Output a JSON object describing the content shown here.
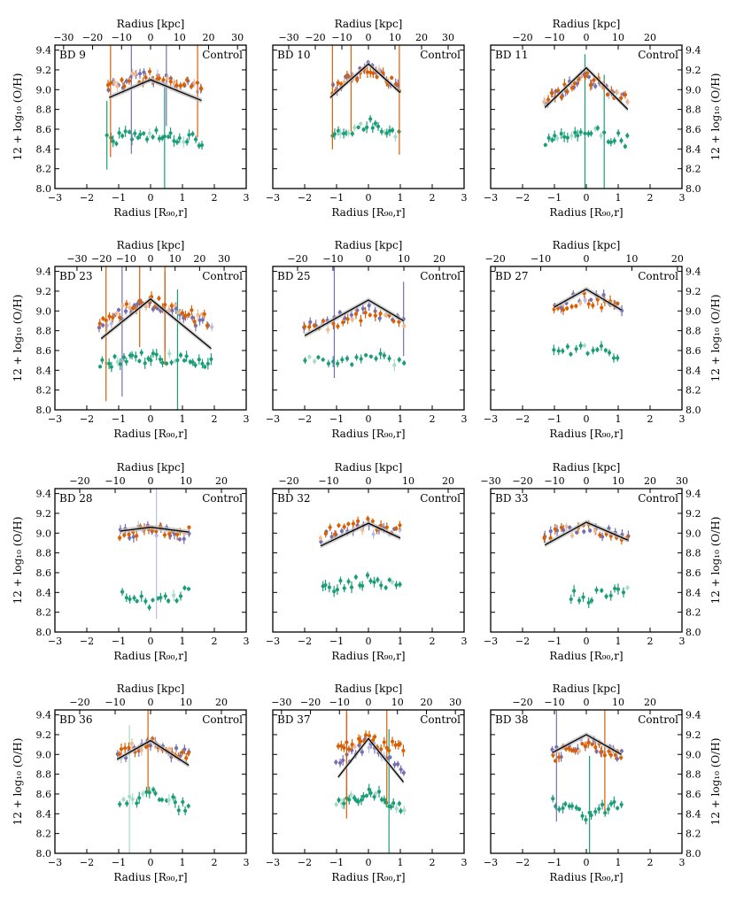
{
  "figure": {
    "bottom_xlabel": "Radius [R₉₀,r]",
    "top_xlabel": "Radius [kpc]",
    "ylabel": "12 + log₁₀ (O/H)",
    "control_label": "Control"
  },
  "colors": {
    "orange": "#d95f02",
    "purple": "#7570b3",
    "green": "#1b9e77",
    "light_orange": "#f0b98e",
    "light_purple": "#bdbbe0",
    "light_green": "#a6dcc8",
    "fit_line": "#000000",
    "fit_band": "#bbbbbb"
  },
  "chart_data": [
    {
      "type": "scatter",
      "title": "BD 9",
      "ylim": [
        8.0,
        9.45
      ],
      "xlim": [
        -3,
        3
      ],
      "x_ticks": [
        -3,
        -2,
        -1,
        0,
        1,
        2,
        3
      ],
      "y_ticks": [
        8.0,
        8.2,
        8.4,
        8.6,
        8.8,
        9.0,
        9.2,
        9.4
      ],
      "top_ticks": [
        -30,
        -20,
        -10,
        0,
        10,
        20,
        30
      ],
      "kpc_per_r90": 11,
      "fit": {
        "x": [
          -1.3,
          0,
          1.6
        ],
        "y": [
          8.92,
          9.1,
          8.89
        ]
      },
      "profiles": {
        "orange": {
          "xr": [
            -1.35,
            1.6
          ],
          "base": 9.04,
          "amp": 0.1,
          "n": 28
        },
        "purple": {
          "xr": [
            -1.3,
            1.6
          ],
          "base": 9.02,
          "amp": 0.12,
          "n": 22
        },
        "green": {
          "xr": [
            -1.35,
            1.6
          ],
          "base": 8.49,
          "amp": 0.06,
          "n": 32
        }
      }
    },
    {
      "type": "scatter",
      "title": "BD 10",
      "ylim": [
        8.0,
        9.45
      ],
      "xlim": [
        -3,
        3
      ],
      "x_ticks": [
        -3,
        -2,
        -1,
        0,
        1,
        2,
        3
      ],
      "y_ticks": [
        8.0,
        8.2,
        8.4,
        8.6,
        8.8,
        9.0,
        9.2,
        9.4
      ],
      "top_ticks": [
        -30,
        -20,
        -10,
        0,
        10,
        20,
        30
      ],
      "kpc_per_r90": 12,
      "fit": {
        "x": [
          -1.2,
          0,
          1.0
        ],
        "y": [
          8.92,
          9.26,
          8.97
        ]
      },
      "profiles": {
        "orange": {
          "xr": [
            -1.15,
            0.95
          ],
          "base": 9.0,
          "amp": 0.22,
          "n": 22
        },
        "purple": {
          "xr": [
            -1.1,
            0.95
          ],
          "base": 9.0,
          "amp": 0.22,
          "n": 18
        },
        "green": {
          "xr": [
            -1.15,
            0.95
          ],
          "base": 8.52,
          "amp": 0.15,
          "n": 24
        }
      }
    },
    {
      "type": "scatter",
      "title": "BD 11",
      "ylim": [
        8.0,
        9.45
      ],
      "xlim": [
        -3,
        3
      ],
      "x_ticks": [
        -3,
        -2,
        -1,
        0,
        1,
        2,
        3
      ],
      "y_ticks": [
        8.0,
        8.2,
        8.4,
        8.6,
        8.8,
        9.0,
        9.2,
        9.4
      ],
      "top_ticks": [
        -20,
        -10,
        0,
        10,
        20
      ],
      "kpc_per_r90": 10,
      "fit": {
        "x": [
          -1.3,
          0,
          1.3
        ],
        "y": [
          8.82,
          9.22,
          8.8
        ]
      },
      "profiles": {
        "orange": {
          "xr": [
            -1.3,
            1.3
          ],
          "base": 8.88,
          "amp": 0.25,
          "n": 26
        },
        "purple": {
          "xr": [
            -1.3,
            1.3
          ],
          "base": 8.88,
          "amp": 0.25,
          "n": 24
        },
        "green": {
          "xr": [
            -1.3,
            1.3
          ],
          "base": 8.48,
          "amp": 0.1,
          "n": 26
        }
      }
    },
    {
      "type": "scatter",
      "title": "BD 23",
      "ylim": [
        8.0,
        9.45
      ],
      "xlim": [
        -3,
        3
      ],
      "x_ticks": [
        -3,
        -2,
        -1,
        0,
        1,
        2,
        3
      ],
      "y_ticks": [
        8.0,
        8.2,
        8.4,
        8.6,
        8.8,
        9.0,
        9.2,
        9.4
      ],
      "top_ticks": [
        -30,
        -20,
        -10,
        0,
        10,
        20,
        30
      ],
      "kpc_per_r90": 13,
      "fit": {
        "x": [
          -1.55,
          0,
          1.9
        ],
        "y": [
          8.72,
          9.12,
          8.62
        ]
      },
      "profiles": {
        "orange": {
          "xr": [
            -1.6,
            1.8
          ],
          "base": 8.9,
          "amp": 0.2,
          "n": 34
        },
        "purple": {
          "xr": [
            -1.6,
            1.9
          ],
          "base": 8.85,
          "amp": 0.22,
          "n": 30
        },
        "green": {
          "xr": [
            -1.6,
            1.9
          ],
          "base": 8.47,
          "amp": 0.06,
          "n": 38
        }
      }
    },
    {
      "type": "scatter",
      "title": "BD 25",
      "ylim": [
        8.0,
        9.45
      ],
      "xlim": [
        -3,
        3
      ],
      "x_ticks": [
        -3,
        -2,
        -1,
        0,
        1,
        2,
        3
      ],
      "y_ticks": [
        8.0,
        8.2,
        8.4,
        8.6,
        8.8,
        9.0,
        9.2,
        9.4
      ],
      "top_ticks": [
        -20,
        -10,
        0,
        10,
        20
      ],
      "kpc_per_r90": 9,
      "fit": {
        "x": [
          -2.0,
          0,
          1.1
        ],
        "y": [
          8.75,
          9.11,
          8.9
        ]
      },
      "profiles": {
        "orange": {
          "xr": [
            -2.0,
            1.1
          ],
          "base": 8.8,
          "amp": 0.18,
          "n": 22
        },
        "purple": {
          "xr": [
            -2.0,
            1.1
          ],
          "base": 8.85,
          "amp": 0.15,
          "n": 18
        },
        "green": {
          "xr": [
            -2.0,
            1.1
          ],
          "base": 8.48,
          "amp": 0.05,
          "n": 22
        }
      }
    },
    {
      "type": "scatter",
      "title": "BD 27",
      "ylim": [
        8.0,
        9.45
      ],
      "xlim": [
        -3,
        3
      ],
      "x_ticks": [
        -3,
        -2,
        -1,
        0,
        1,
        2,
        3
      ],
      "y_ticks": [
        8.0,
        8.2,
        8.4,
        8.6,
        8.8,
        9.0,
        9.2,
        9.4
      ],
      "top_ticks": [
        -20,
        -10,
        0,
        10,
        20
      ],
      "kpc_per_r90": 7,
      "fit": {
        "x": [
          -1.0,
          0,
          1.1
        ],
        "y": [
          9.04,
          9.22,
          9.01
        ]
      },
      "profiles": {
        "orange": {
          "xr": [
            -1.0,
            1.0
          ],
          "base": 9.03,
          "amp": 0.1,
          "n": 16
        },
        "purple": {
          "xr": [
            -1.0,
            1.1
          ],
          "base": 9.05,
          "amp": 0.12,
          "n": 12
        },
        "green": {
          "xr": [
            -1.0,
            1.0
          ],
          "base": 8.55,
          "amp": 0.08,
          "n": 16
        }
      }
    },
    {
      "type": "scatter",
      "title": "BD 28",
      "ylim": [
        8.0,
        9.45
      ],
      "xlim": [
        -3,
        3
      ],
      "x_ticks": [
        -3,
        -2,
        -1,
        0,
        1,
        2,
        3
      ],
      "y_ticks": [
        8.0,
        8.2,
        8.4,
        8.6,
        8.8,
        9.0,
        9.2,
        9.4
      ],
      "top_ticks": [
        -20,
        -10,
        0,
        10,
        20
      ],
      "kpc_per_r90": 9,
      "fit": {
        "x": [
          -0.95,
          0,
          1.2
        ],
        "y": [
          9.02,
          9.06,
          9.01
        ]
      },
      "profiles": {
        "orange": {
          "xr": [
            -0.95,
            1.2
          ],
          "base": 9.0,
          "amp": 0.05,
          "n": 18
        },
        "purple": {
          "xr": [
            -0.95,
            1.2
          ],
          "base": 8.98,
          "amp": 0.05,
          "n": 16
        },
        "green": {
          "xr": [
            -0.9,
            1.2
          ],
          "base": 8.42,
          "amp": -0.15,
          "n": 18
        }
      }
    },
    {
      "type": "scatter",
      "title": "BD 32",
      "ylim": [
        8.0,
        9.45
      ],
      "xlim": [
        -3,
        3
      ],
      "x_ticks": [
        -3,
        -2,
        -1,
        0,
        1,
        2,
        3
      ],
      "y_ticks": [
        8.0,
        8.2,
        8.4,
        8.6,
        8.8,
        9.0,
        9.2,
        9.4
      ],
      "top_ticks": [
        -20,
        -10,
        0,
        10,
        20
      ],
      "kpc_per_r90": 8,
      "fit": {
        "x": [
          -1.5,
          0,
          1.0
        ],
        "y": [
          8.87,
          9.1,
          8.95
        ]
      },
      "profiles": {
        "orange": {
          "xr": [
            -1.5,
            1.0
          ],
          "base": 9.0,
          "amp": 0.1,
          "n": 18
        },
        "purple": {
          "xr": [
            -1.5,
            1.0
          ],
          "base": 8.95,
          "amp": 0.1,
          "n": 16
        },
        "green": {
          "xr": [
            -1.45,
            1.0
          ],
          "base": 8.45,
          "amp": 0.08,
          "n": 22
        }
      }
    },
    {
      "type": "scatter",
      "title": "BD 33",
      "ylim": [
        8.0,
        9.45
      ],
      "xlim": [
        -3,
        3
      ],
      "x_ticks": [
        -3,
        -2,
        -1,
        0,
        1,
        2,
        3
      ],
      "y_ticks": [
        8.0,
        8.2,
        8.4,
        8.6,
        8.8,
        9.0,
        9.2,
        9.4
      ],
      "top_ticks": [
        -30,
        -20,
        -10,
        0,
        10,
        20,
        30
      ],
      "kpc_per_r90": 10,
      "fit": {
        "x": [
          -1.3,
          0,
          1.3
        ],
        "y": [
          8.88,
          9.11,
          8.93
        ]
      },
      "profiles": {
        "orange": {
          "xr": [
            -1.3,
            1.3
          ],
          "base": 8.98,
          "amp": 0.08,
          "n": 16
        },
        "purple": {
          "xr": [
            -1.3,
            1.3
          ],
          "base": 8.95,
          "amp": 0.1,
          "n": 14
        },
        "green": {
          "xr": [
            -0.5,
            1.3
          ],
          "base": 8.45,
          "amp": -0.1,
          "n": 14
        }
      }
    },
    {
      "type": "scatter",
      "title": "BD 36",
      "ylim": [
        8.0,
        9.45
      ],
      "xlim": [
        -3,
        3
      ],
      "x_ticks": [
        -3,
        -2,
        -1,
        0,
        1,
        2,
        3
      ],
      "y_ticks": [
        8.0,
        8.2,
        8.4,
        8.6,
        8.8,
        9.0,
        9.2,
        9.4
      ],
      "top_ticks": [
        -20,
        -10,
        0,
        10,
        20
      ],
      "kpc_per_r90": 9,
      "fit": {
        "x": [
          -1.05,
          0,
          1.2
        ],
        "y": [
          8.95,
          9.14,
          8.89
        ]
      },
      "profiles": {
        "orange": {
          "xr": [
            -1.0,
            1.2
          ],
          "base": 9.0,
          "amp": 0.12,
          "n": 22
        },
        "purple": {
          "xr": [
            -1.05,
            1.2
          ],
          "base": 8.98,
          "amp": 0.12,
          "n": 18
        },
        "green": {
          "xr": [
            -0.95,
            1.2
          ],
          "base": 8.45,
          "amp": 0.15,
          "n": 22
        }
      }
    },
    {
      "type": "scatter",
      "title": "BD 37",
      "ylim": [
        8.0,
        9.45
      ],
      "xlim": [
        -3,
        3
      ],
      "x_ticks": [
        -3,
        -2,
        -1,
        0,
        1,
        2,
        3
      ],
      "y_ticks": [
        8.0,
        8.2,
        8.4,
        8.6,
        8.8,
        9.0,
        9.2,
        9.4
      ],
      "top_ticks": [
        -30,
        -20,
        -10,
        0,
        10,
        20,
        30
      ],
      "kpc_per_r90": 11,
      "fit": {
        "x": [
          -0.95,
          0,
          1.1
        ],
        "y": [
          8.77,
          9.16,
          8.72
        ]
      },
      "profiles": {
        "orange": {
          "xr": [
            -0.95,
            1.1
          ],
          "base": 9.05,
          "amp": 0.1,
          "n": 24
        },
        "purple": {
          "xr": [
            -1.0,
            1.1
          ],
          "base": 8.85,
          "amp": 0.28,
          "n": 22
        },
        "green": {
          "xr": [
            -1.0,
            1.1
          ],
          "base": 8.45,
          "amp": 0.18,
          "n": 28
        }
      }
    },
    {
      "type": "scatter",
      "title": "BD 38",
      "ylim": [
        8.0,
        9.45
      ],
      "xlim": [
        -3,
        3
      ],
      "x_ticks": [
        -3,
        -2,
        -1,
        0,
        1,
        2,
        3
      ],
      "y_ticks": [
        8.0,
        8.2,
        8.4,
        8.6,
        8.8,
        9.0,
        9.2,
        9.4
      ],
      "top_ticks": [
        -20,
        -10,
        0,
        10,
        20
      ],
      "kpc_per_r90": 10,
      "fit": {
        "x": [
          -1.05,
          0,
          1.1
        ],
        "y": [
          9.02,
          9.2,
          9.0
        ]
      },
      "profiles": {
        "orange": {
          "xr": [
            -1.05,
            1.1
          ],
          "base": 8.98,
          "amp": 0.12,
          "n": 22
        },
        "purple": {
          "xr": [
            -1.05,
            1.1
          ],
          "base": 9.0,
          "amp": 0.12,
          "n": 18
        },
        "green": {
          "xr": [
            -1.05,
            1.1
          ],
          "base": 8.5,
          "amp": -0.12,
          "n": 22
        }
      }
    }
  ]
}
